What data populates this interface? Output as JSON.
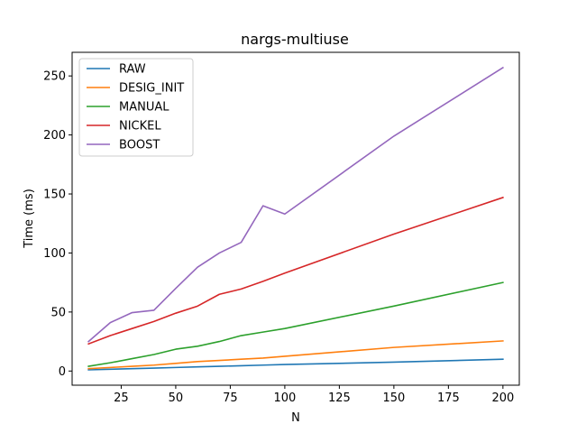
{
  "chart_data": {
    "type": "line",
    "title": "nargs-multiuse",
    "xlabel": "N",
    "ylabel": "Time (ms)",
    "xlim": [
      2.5,
      207.5
    ],
    "ylim": [
      -12,
      270
    ],
    "xticks": [
      25,
      50,
      75,
      100,
      125,
      150,
      175,
      200
    ],
    "yticks": [
      0,
      50,
      100,
      150,
      200,
      250
    ],
    "grid": false,
    "legend": "top-left",
    "x": [
      10,
      20,
      30,
      40,
      50,
      60,
      70,
      80,
      90,
      100,
      150,
      200
    ],
    "series": [
      {
        "name": "RAW",
        "color": "#1f77b4",
        "values": [
          1,
          1.5,
          2,
          2.5,
          3,
          3.5,
          4,
          4.5,
          5,
          5.5,
          7.5,
          10
        ]
      },
      {
        "name": "DESIG_INIT",
        "color": "#ff7f0e",
        "values": [
          2,
          3,
          4,
          5,
          6.5,
          8,
          9,
          10,
          11,
          12.5,
          20,
          25.5
        ]
      },
      {
        "name": "MANUAL",
        "color": "#2ca02c",
        "values": [
          4,
          7,
          10.5,
          14,
          18.5,
          21,
          25,
          30,
          33,
          36,
          55,
          75
        ]
      },
      {
        "name": "NICKEL",
        "color": "#d62728",
        "values": [
          23,
          30,
          36,
          42,
          49,
          55,
          65,
          69.5,
          76,
          83,
          116,
          147
        ]
      },
      {
        "name": "BOOST",
        "color": "#9467bd",
        "values": [
          25,
          41,
          49.5,
          51.5,
          70,
          88,
          100,
          109,
          140,
          133,
          199,
          257
        ]
      }
    ]
  }
}
